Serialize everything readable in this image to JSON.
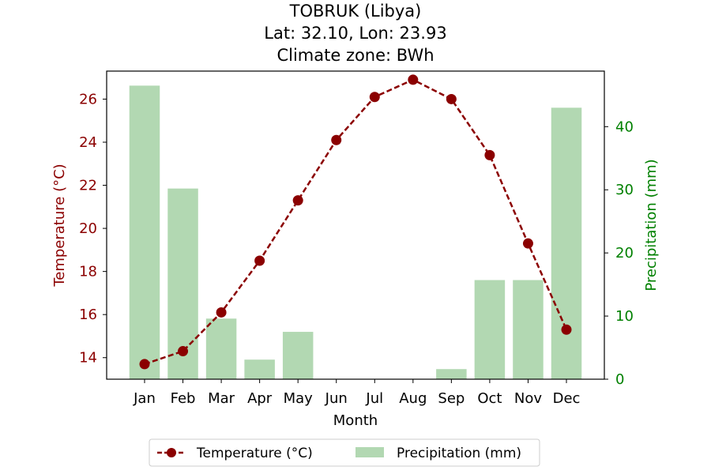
{
  "chart_data": {
    "type": "bar+line",
    "title_lines": [
      "TOBRUK (Libya)",
      "Lat: 32.10, Lon: 23.93",
      "Climate zone: BWh"
    ],
    "xlabel": "Month",
    "categories": [
      "Jan",
      "Feb",
      "Mar",
      "Apr",
      "May",
      "Jun",
      "Jul",
      "Aug",
      "Sep",
      "Oct",
      "Nov",
      "Dec"
    ],
    "temperature": {
      "name": "Temperature (°C)",
      "axis_label": "Temperature (°C)",
      "values": [
        13.7,
        14.3,
        16.1,
        18.5,
        21.3,
        24.1,
        26.1,
        26.9,
        26.0,
        23.4,
        19.3,
        15.3
      ],
      "ylim": [
        13.0,
        27.3
      ],
      "ticks": [
        14,
        16,
        18,
        20,
        22,
        24,
        26
      ],
      "color": "#8b0000",
      "style": "dashed line with circle markers"
    },
    "precipitation": {
      "name": "Precipitation (mm)",
      "axis_label": "Precipitation (mm)",
      "values": [
        46.5,
        30.2,
        9.6,
        3.1,
        7.5,
        0,
        0,
        0,
        1.6,
        15.7,
        15.7,
        43.0
      ],
      "ylim": [
        0,
        48.8
      ],
      "ticks": [
        0,
        10,
        20,
        30,
        40
      ],
      "color": "#b2d8b2",
      "tick_color": "#008000"
    },
    "legend": {
      "placement": "bottom-center"
    },
    "grid": false
  }
}
